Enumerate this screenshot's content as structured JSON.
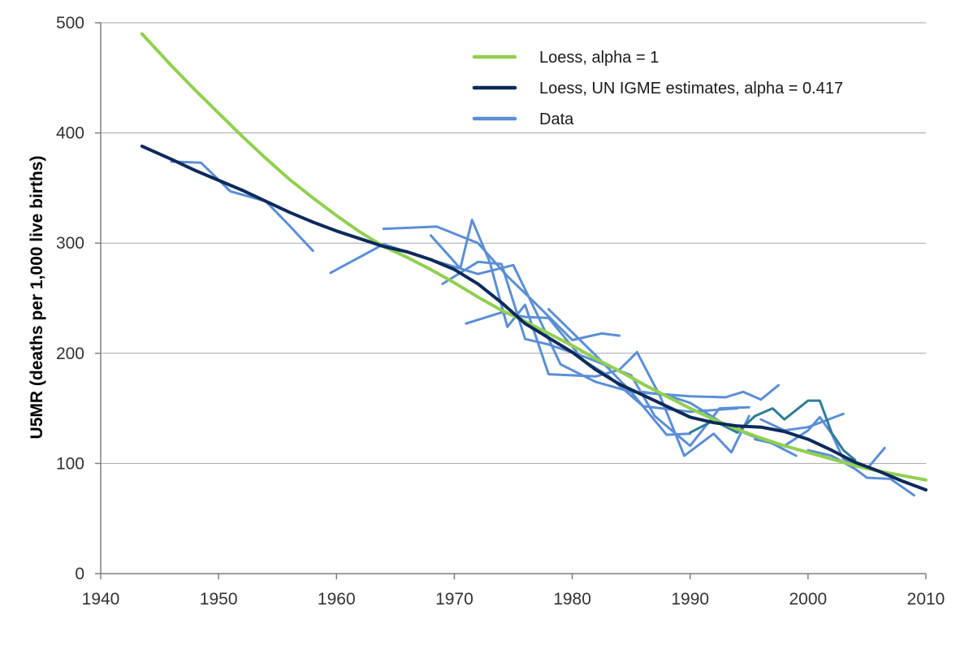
{
  "chart_data": {
    "type": "line",
    "title": "",
    "xlabel": "",
    "ylabel": "U5MR (deaths per 1,000 live births)",
    "xlim": [
      1940,
      2010
    ],
    "ylim": [
      0,
      500
    ],
    "x_ticks": [
      "1940",
      "1950",
      "1960",
      "1970",
      "1980",
      "1990",
      "2000",
      "2010"
    ],
    "y_ticks": [
      "0",
      "100",
      "200",
      "300",
      "400",
      "500"
    ],
    "grid": "horizontal",
    "legend_position": "top-right",
    "legend": [
      {
        "label": "Loess, alpha = 1",
        "color": "#92D050"
      },
      {
        "label": "Loess, UN IGME estimates, alpha = 0.417",
        "color": "#0D2A5C"
      },
      {
        "label": "Data",
        "color": "#5B8FD5"
      }
    ],
    "series": [
      {
        "name": "Loess, alpha = 1",
        "color": "#92D050",
        "width": 4,
        "points": [
          [
            1943.5,
            490
          ],
          [
            1946,
            461
          ],
          [
            1948,
            439
          ],
          [
            1950,
            418
          ],
          [
            1952,
            397
          ],
          [
            1954,
            377
          ],
          [
            1956,
            358
          ],
          [
            1958,
            341
          ],
          [
            1960,
            325
          ],
          [
            1962,
            310
          ],
          [
            1964,
            297
          ],
          [
            1966,
            287
          ],
          [
            1968,
            276
          ],
          [
            1970,
            264
          ],
          [
            1972,
            251
          ],
          [
            1974,
            239
          ],
          [
            1976,
            229
          ],
          [
            1978,
            218
          ],
          [
            1980,
            207
          ],
          [
            1982,
            195
          ],
          [
            1984,
            184
          ],
          [
            1986,
            172
          ],
          [
            1988,
            161
          ],
          [
            1990,
            150
          ],
          [
            1992,
            140
          ],
          [
            1994,
            131
          ],
          [
            1996,
            123
          ],
          [
            1998,
            116
          ],
          [
            2000,
            110
          ],
          [
            2002,
            104
          ],
          [
            2004,
            98
          ],
          [
            2006,
            93
          ],
          [
            2008,
            89
          ],
          [
            2010,
            85
          ]
        ]
      },
      {
        "name": "Loess, UN IGME estimates, alpha = 0.417",
        "color": "#0D2A5C",
        "width": 4,
        "points": [
          [
            1943.5,
            388
          ],
          [
            1946,
            376
          ],
          [
            1948,
            366
          ],
          [
            1950,
            357
          ],
          [
            1952,
            348
          ],
          [
            1954,
            338
          ],
          [
            1956,
            328
          ],
          [
            1958,
            319
          ],
          [
            1960,
            311
          ],
          [
            1962,
            304
          ],
          [
            1964,
            297
          ],
          [
            1966,
            292
          ],
          [
            1968,
            285
          ],
          [
            1970,
            276
          ],
          [
            1972,
            263
          ],
          [
            1974,
            246
          ],
          [
            1976,
            227
          ],
          [
            1978,
            214
          ],
          [
            1980,
            201
          ],
          [
            1982,
            185
          ],
          [
            1984,
            172
          ],
          [
            1986,
            162
          ],
          [
            1988,
            152
          ],
          [
            1990,
            142
          ],
          [
            1992,
            137
          ],
          [
            1994,
            134
          ],
          [
            1996,
            133
          ],
          [
            1998,
            129
          ],
          [
            2000,
            122
          ],
          [
            2002,
            112
          ],
          [
            2004,
            101
          ],
          [
            2006,
            93
          ],
          [
            2008,
            84
          ],
          [
            2010,
            76
          ]
        ]
      },
      {
        "name": "",
        "color": "#5B8FD5",
        "width": 3,
        "points": [
          [
            1946,
            374
          ],
          [
            1948.5,
            373
          ],
          [
            1951,
            347
          ],
          [
            1954,
            338
          ],
          [
            1956,
            316
          ],
          [
            1958,
            293
          ]
        ]
      },
      {
        "name": "",
        "color": "#5B8FD5",
        "width": 3,
        "points": [
          [
            1959.5,
            273
          ],
          [
            1964,
            299
          ],
          [
            1968,
            285
          ],
          [
            1972,
            272
          ],
          [
            1975,
            280
          ],
          [
            1977,
            236
          ],
          [
            1979,
            190
          ],
          [
            1982,
            174
          ],
          [
            1985,
            165
          ],
          [
            1988,
            126
          ],
          [
            1990,
            127
          ]
        ]
      },
      {
        "name": "",
        "color": "#5B8FD5",
        "width": 3,
        "points": [
          [
            1964,
            313
          ],
          [
            1968.5,
            315
          ],
          [
            1972,
            300
          ],
          [
            1974.5,
            270
          ],
          [
            1977,
            244
          ],
          [
            1980,
            212
          ],
          [
            1982.5,
            218
          ],
          [
            1984,
            216
          ]
        ]
      },
      {
        "name": "",
        "color": "#5B8FD5",
        "width": 3,
        "points": [
          [
            1968,
            307
          ],
          [
            1970.5,
            277
          ],
          [
            1971.5,
            321
          ],
          [
            1973,
            283
          ],
          [
            1974.5,
            224
          ],
          [
            1976,
            244
          ],
          [
            1978,
            181
          ],
          [
            1982,
            179
          ],
          [
            1984,
            185
          ],
          [
            1985.5,
            201
          ],
          [
            1987.5,
            160
          ],
          [
            1989.5,
            107
          ],
          [
            1992,
            127
          ],
          [
            1993.5,
            110
          ],
          [
            1995,
            143
          ]
        ]
      },
      {
        "name": "",
        "color": "#5B8FD5",
        "width": 3,
        "points": [
          [
            1969,
            263
          ],
          [
            1972,
            283
          ],
          [
            1974,
            281
          ],
          [
            1976,
            213
          ],
          [
            1978,
            208
          ],
          [
            1981,
            197
          ],
          [
            1985,
            180
          ],
          [
            1987,
            143
          ],
          [
            1990,
            116
          ],
          [
            1992.5,
            150
          ],
          [
            1995,
            151
          ]
        ]
      },
      {
        "name": "",
        "color": "#5B8FD5",
        "width": 3,
        "points": [
          [
            1971,
            227
          ],
          [
            1974,
            237
          ],
          [
            1976,
            233
          ],
          [
            1978,
            232
          ],
          [
            1981,
            193
          ],
          [
            1983,
            180
          ],
          [
            1986,
            152
          ],
          [
            1990,
            147
          ],
          [
            1994,
            150
          ]
        ]
      },
      {
        "name": "",
        "color": "#5B8FD5",
        "width": 3,
        "points": [
          [
            1978,
            240
          ],
          [
            1982,
            198
          ],
          [
            1985,
            165
          ],
          [
            1990,
            161
          ],
          [
            1993,
            160
          ],
          [
            1994.5,
            165
          ],
          [
            1996,
            158
          ],
          [
            1997.5,
            171
          ]
        ]
      },
      {
        "name": "",
        "color": "#5B8FD5",
        "width": 3,
        "points": [
          [
            1986,
            165
          ],
          [
            1988,
            162
          ],
          [
            1990,
            155
          ],
          [
            1993,
            135
          ],
          [
            1995,
            126
          ],
          [
            1997,
            118
          ],
          [
            1999,
            107
          ]
        ]
      },
      {
        "name": "",
        "color": "#5B8FD5",
        "width": 3,
        "points": [
          [
            1995.5,
            122
          ],
          [
            1998,
            116
          ],
          [
            2000,
            130
          ],
          [
            2001,
            142
          ],
          [
            2002,
            127
          ],
          [
            2003,
            104
          ],
          [
            2005,
            95
          ],
          [
            2006.5,
            114
          ]
        ]
      },
      {
        "name": "",
        "color": "#5B8FD5",
        "width": 3,
        "points": [
          [
            1996,
            140
          ],
          [
            1998,
            130
          ],
          [
            2000,
            133
          ],
          [
            2003,
            145
          ]
        ]
      },
      {
        "name": "",
        "color": "#5B8FD5",
        "width": 3,
        "points": [
          [
            2000,
            112
          ],
          [
            2002,
            107
          ],
          [
            2004,
            95
          ],
          [
            2005,
            87
          ],
          [
            2007,
            86
          ],
          [
            2009,
            71
          ]
        ]
      },
      {
        "name": "",
        "color": "#2E7D96",
        "width": 3,
        "points": [
          [
            1990,
            128
          ],
          [
            1992,
            139
          ],
          [
            1994,
            128
          ],
          [
            1995.5,
            143
          ],
          [
            1997,
            150
          ],
          [
            1998,
            140
          ],
          [
            2000,
            157
          ],
          [
            2001,
            157
          ],
          [
            2002,
            128
          ],
          [
            2003,
            112
          ],
          [
            2004,
            103
          ]
        ]
      }
    ]
  }
}
